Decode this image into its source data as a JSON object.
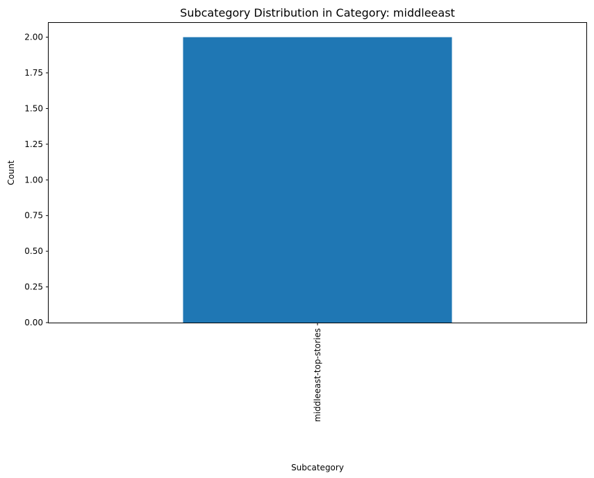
{
  "chart_data": {
    "type": "bar",
    "title": "Subcategory Distribution in Category: middleeast",
    "xlabel": "Subcategory",
    "ylabel": "Count",
    "categories": [
      "middleeast-top-stories"
    ],
    "values": [
      2
    ],
    "ylim": [
      0,
      2.1
    ],
    "yticks": [
      "0.00",
      "0.25",
      "0.50",
      "0.75",
      "1.00",
      "1.25",
      "1.50",
      "1.75",
      "2.00"
    ],
    "ytick_values": [
      0,
      0.25,
      0.5,
      0.75,
      1.0,
      1.25,
      1.5,
      1.75,
      2.0
    ],
    "bar_color": "#1f77b4",
    "grid": false,
    "legend": "none"
  }
}
